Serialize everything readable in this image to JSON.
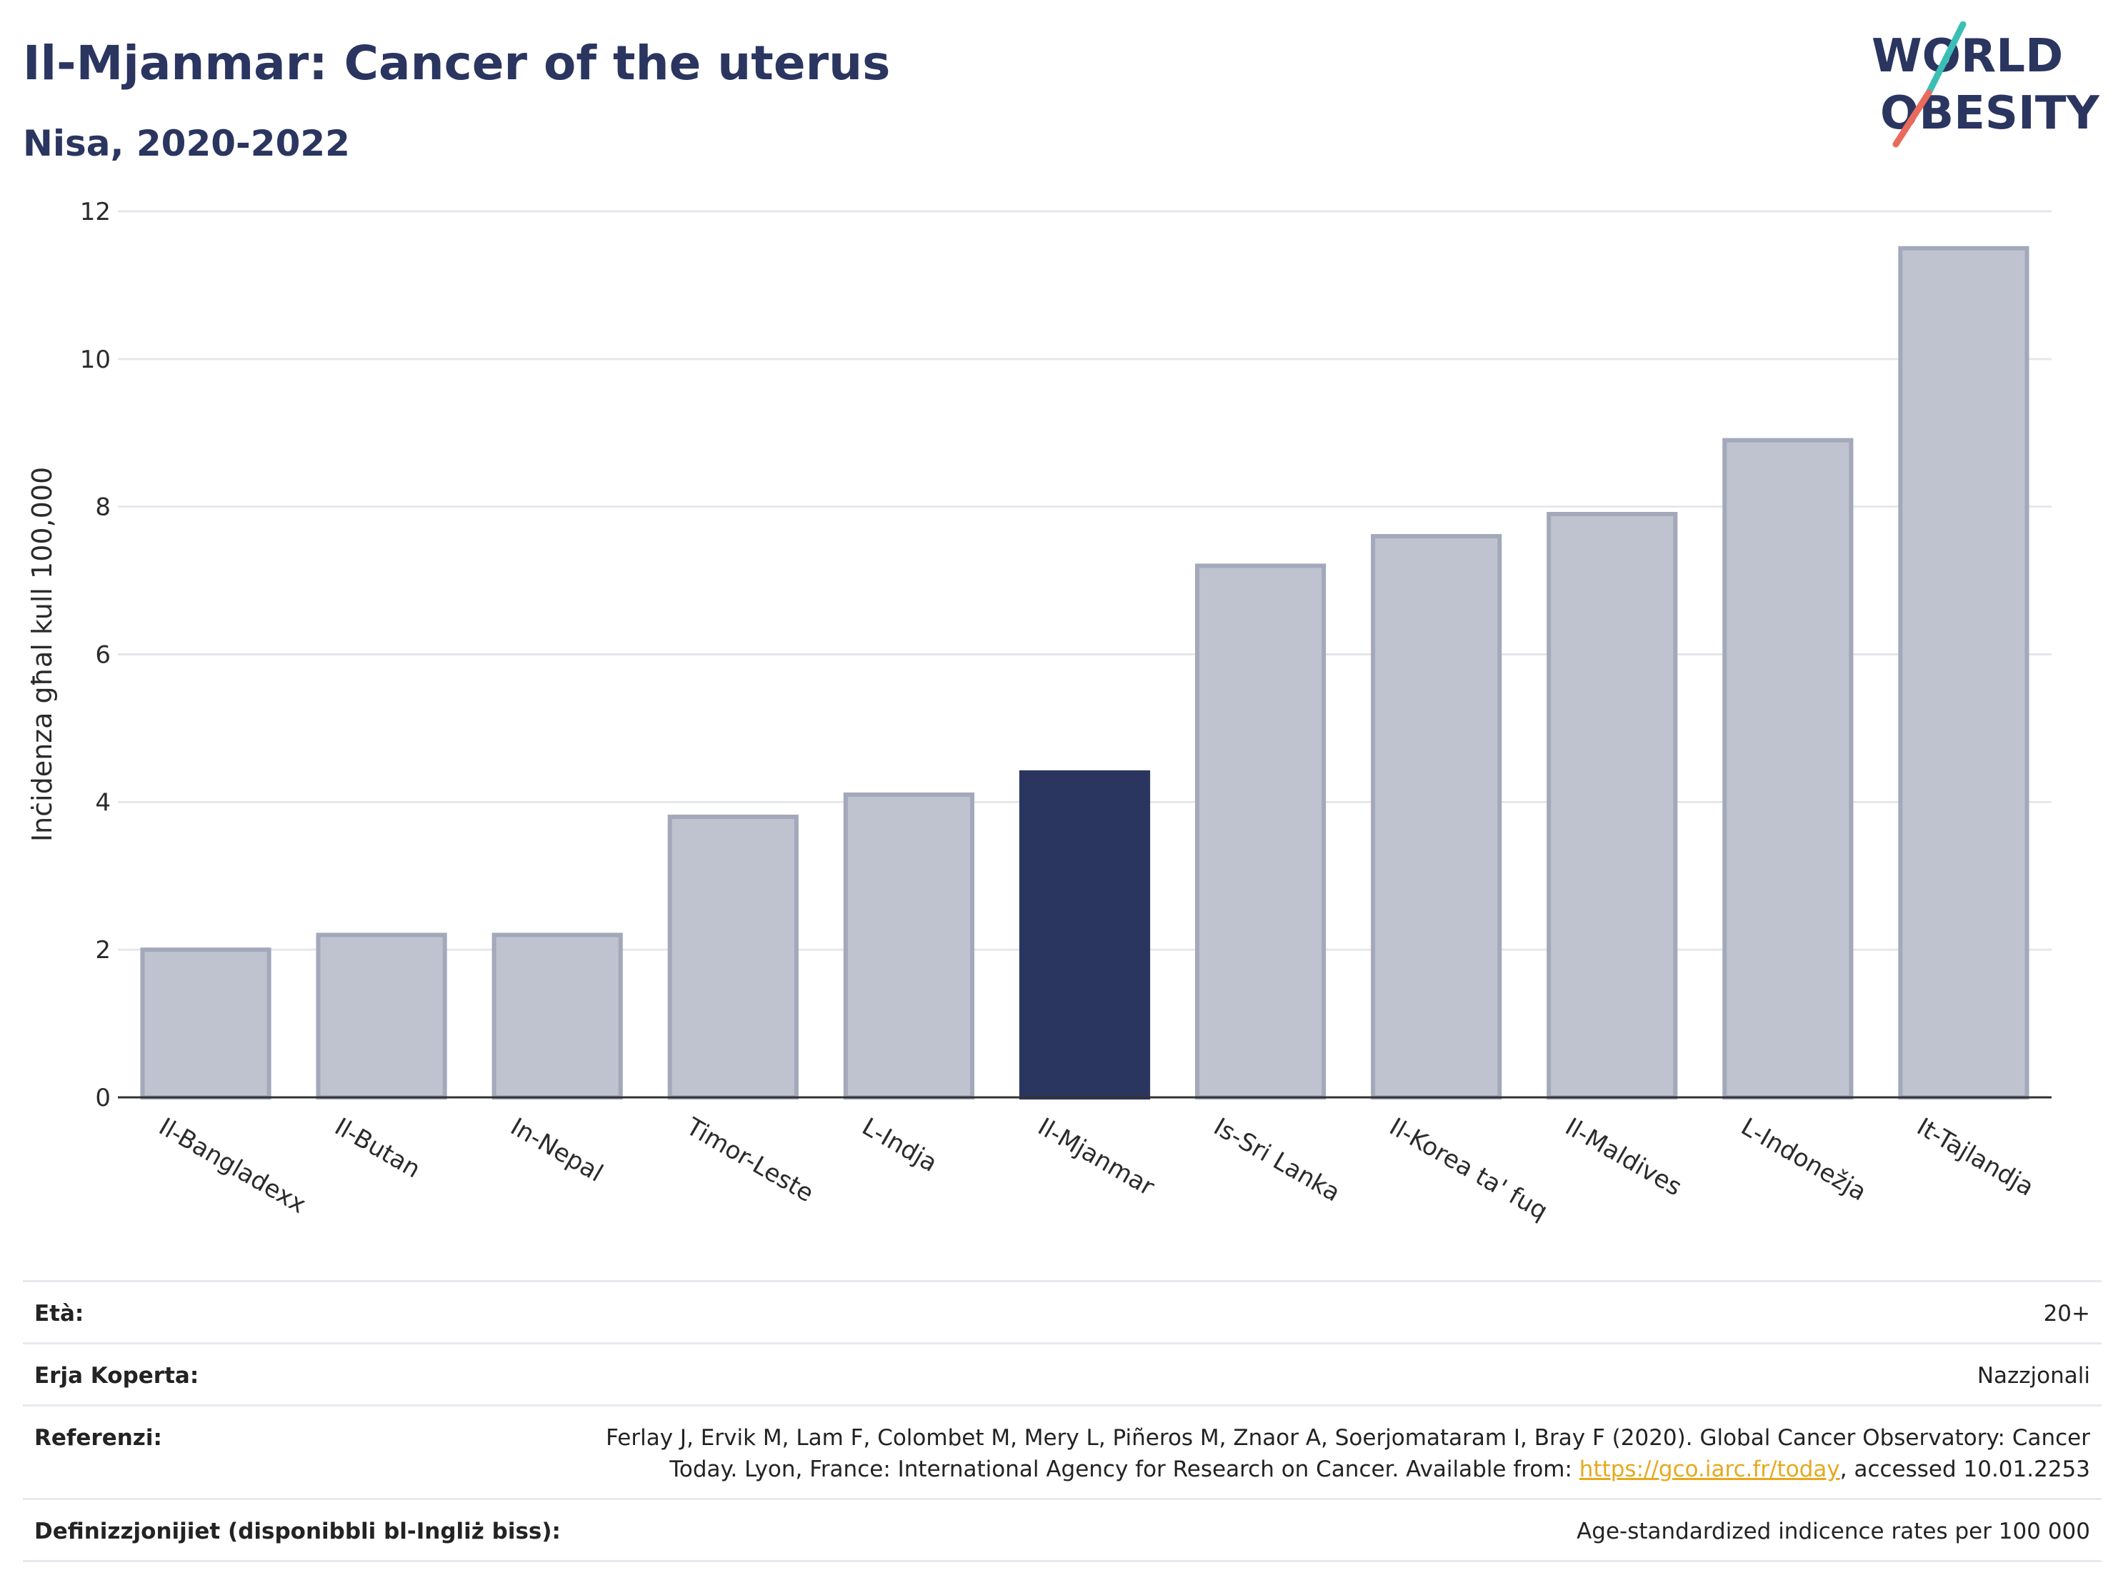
{
  "header": {
    "title": "Il-Mjanmar: Cancer of the uterus",
    "subtitle": "Nisa, 2020-2022"
  },
  "logo": {
    "line1": "WORLD",
    "line2": "OBESITY",
    "accent_teal": "#3bbfb5",
    "accent_coral": "#ea6a5c",
    "text_color": "#2a3560"
  },
  "chart_data": {
    "type": "bar",
    "categories": [
      "Il-Bangladexx",
      "Il-Butan",
      "In-Nepal",
      "Timor-Leste",
      "L-Indja",
      "Il-Mjanmar",
      "Is-Sri Lanka",
      "Il-Korea ta' fuq",
      "Il-Maldives",
      "L-Indonežja",
      "It-Tajlandja"
    ],
    "values": [
      2.0,
      2.2,
      2.2,
      3.8,
      4.1,
      4.4,
      7.2,
      7.6,
      7.9,
      8.9,
      11.5
    ],
    "highlight_category": "Il-Mjanmar",
    "ylabel": "Inċidenza għal kull 100,000",
    "xlabel": "",
    "ylim": [
      0,
      12
    ],
    "yticks": [
      0,
      2,
      4,
      6,
      8,
      10,
      12
    ],
    "grid": true,
    "colors": {
      "bar": "#bfc3cf",
      "bar_border": "#a3a8ba",
      "highlight": "#2a3560",
      "grid": "#e6e7ec",
      "axis": "#333333"
    }
  },
  "meta": {
    "rows": [
      {
        "label": "Età:",
        "value": "20+"
      },
      {
        "label": "Erja Koperta:",
        "value": "Nazzjonali"
      },
      {
        "label": "Referenzi:",
        "value_before": "Ferlay J, Ervik M, Lam F, Colombet M, Mery L, Piñeros M, Znaor A, Soerjomataram I, Bray F (2020). Global Cancer Observatory: Cancer Today. Lyon, France: International Agency for Research on Cancer. Available from: ",
        "link": "https://gco.iarc.fr/today",
        "value_after": ", accessed 10.01.2253"
      },
      {
        "label": "Definizzjonijiet (disponibbli bl-Ingliż biss):",
        "value": "Age-standardized indicence rates per 100 000"
      }
    ]
  }
}
